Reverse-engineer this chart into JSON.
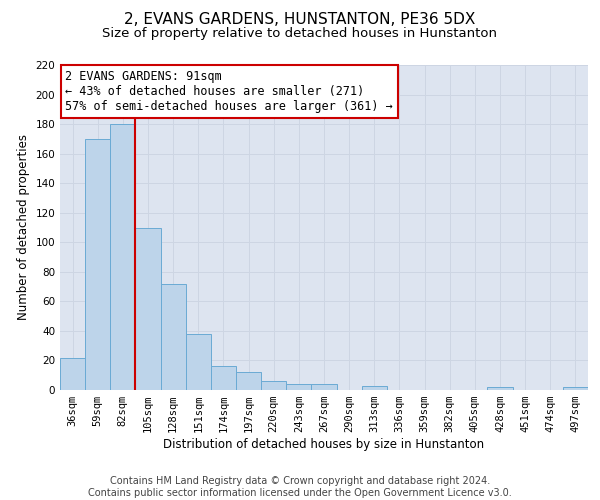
{
  "title": "2, EVANS GARDENS, HUNSTANTON, PE36 5DX",
  "subtitle": "Size of property relative to detached houses in Hunstanton",
  "xlabel": "Distribution of detached houses by size in Hunstanton",
  "ylabel": "Number of detached properties",
  "footer_lines": [
    "Contains HM Land Registry data © Crown copyright and database right 2024.",
    "Contains public sector information licensed under the Open Government Licence v3.0."
  ],
  "bar_labels": [
    "36sqm",
    "59sqm",
    "82sqm",
    "105sqm",
    "128sqm",
    "151sqm",
    "174sqm",
    "197sqm",
    "220sqm",
    "243sqm",
    "267sqm",
    "290sqm",
    "313sqm",
    "336sqm",
    "359sqm",
    "382sqm",
    "405sqm",
    "428sqm",
    "451sqm",
    "474sqm",
    "497sqm"
  ],
  "bar_values": [
    22,
    170,
    180,
    110,
    72,
    38,
    16,
    12,
    6,
    4,
    4,
    0,
    3,
    0,
    0,
    0,
    0,
    2,
    0,
    0,
    2
  ],
  "bar_color": "#bdd4ea",
  "bar_edge_color": "#6aaad4",
  "annotation_box_text": "2 EVANS GARDENS: 91sqm\n← 43% of detached houses are smaller (271)\n57% of semi-detached houses are larger (361) →",
  "annotation_box_edge_color": "#cc0000",
  "vline_color": "#cc0000",
  "vline_pos": 2.5,
  "ylim": [
    0,
    220
  ],
  "yticks": [
    0,
    20,
    40,
    60,
    80,
    100,
    120,
    140,
    160,
    180,
    200,
    220
  ],
  "grid_color": "#cdd5e3",
  "background_color": "#dde4f0",
  "title_fontsize": 11,
  "subtitle_fontsize": 9.5,
  "axis_label_fontsize": 8.5,
  "tick_fontsize": 7.5,
  "annotation_fontsize": 8.5,
  "footer_fontsize": 7
}
